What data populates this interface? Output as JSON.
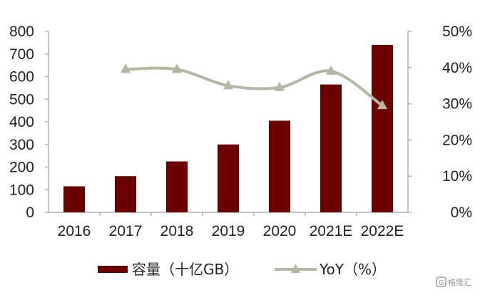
{
  "chart_data": {
    "type": "bar",
    "categories": [
      "2016",
      "2017",
      "2018",
      "2019",
      "2020",
      "2021E",
      "2022E"
    ],
    "series": [
      {
        "name": "容量（十亿GB）",
        "type": "bar",
        "axis": "left",
        "color": "#6b0000",
        "values": [
          115,
          160,
          225,
          300,
          405,
          565,
          740
        ]
      },
      {
        "name": "YoY（%）",
        "type": "line",
        "axis": "right",
        "color": "#b7b5a3",
        "marker": "triangle",
        "values": [
          null,
          39.5,
          39.5,
          35,
          34.5,
          39,
          29.5
        ]
      }
    ],
    "ylim_left": [
      0,
      800
    ],
    "yticks_left": [
      "0",
      "100",
      "200",
      "300",
      "400",
      "500",
      "600",
      "700",
      "800"
    ],
    "ylim_right": [
      0,
      50
    ],
    "yticks_right": [
      "0%",
      "10%",
      "20%",
      "30%",
      "40%",
      "50%"
    ],
    "title": "",
    "xlabel": "",
    "ylabel": "",
    "grid": false,
    "legend_position": "bottom"
  },
  "watermark": {
    "icon": "gelonghui-logo-icon",
    "text": "格隆汇"
  }
}
